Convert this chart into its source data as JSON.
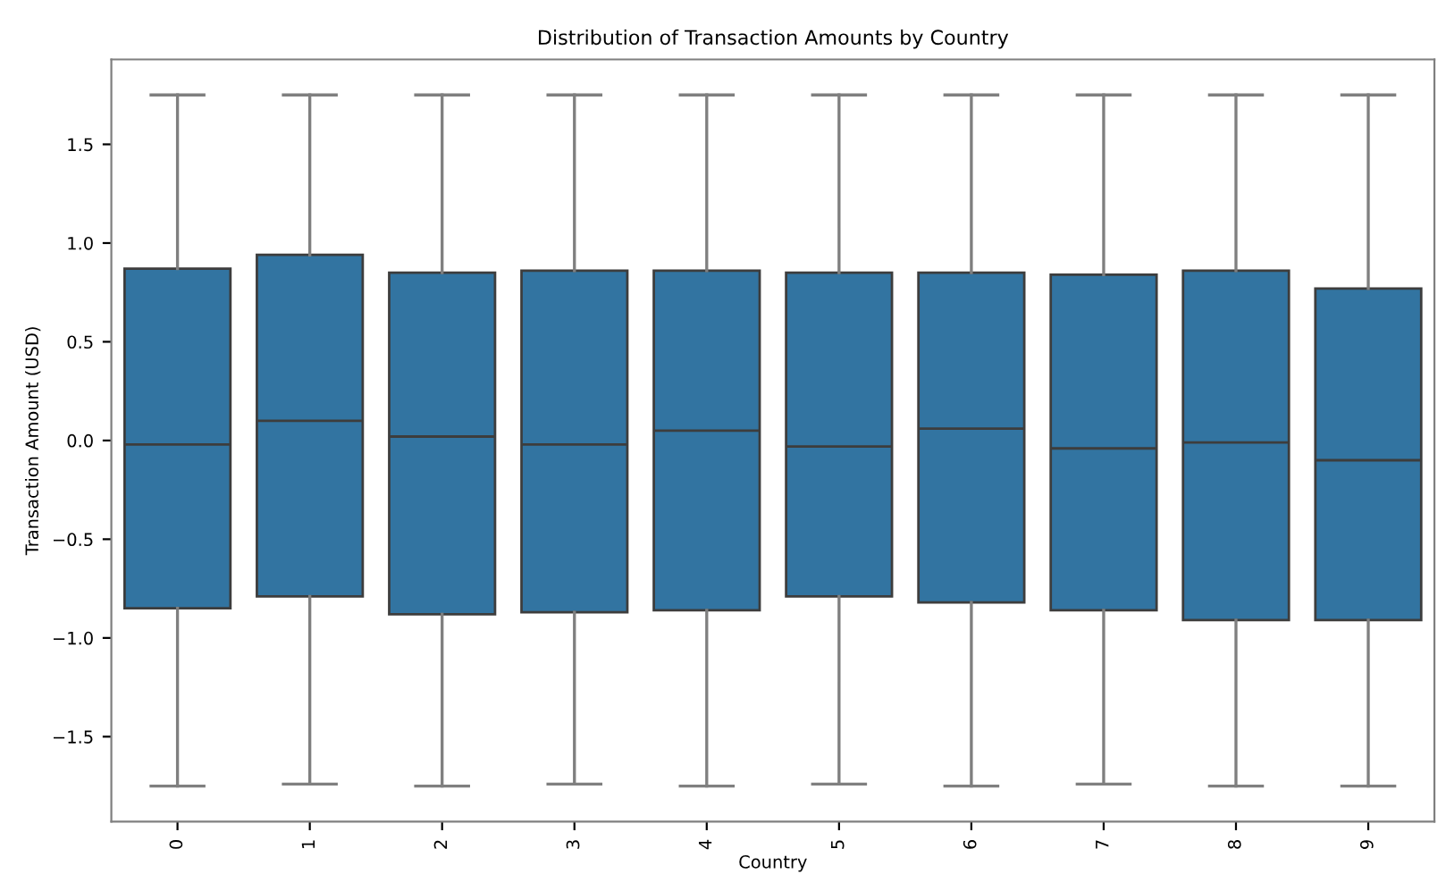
{
  "chart_data": {
    "type": "box",
    "title": "Distribution of Transaction Amounts by Country",
    "xlabel": "Country",
    "ylabel": "Transaction Amount (USD)",
    "categories": [
      "0",
      "1",
      "2",
      "3",
      "4",
      "5",
      "6",
      "7",
      "8",
      "9"
    ],
    "series": [
      {
        "color": "#3274a1",
        "boxes": [
          {
            "low": -1.75,
            "q1": -0.85,
            "median": -0.02,
            "q3": 0.87,
            "high": 1.75
          },
          {
            "low": -1.74,
            "q1": -0.79,
            "median": 0.1,
            "q3": 0.94,
            "high": 1.75
          },
          {
            "low": -1.75,
            "q1": -0.88,
            "median": 0.02,
            "q3": 0.85,
            "high": 1.75
          },
          {
            "low": -1.74,
            "q1": -0.87,
            "median": -0.02,
            "q3": 0.86,
            "high": 1.75
          },
          {
            "low": -1.75,
            "q1": -0.86,
            "median": 0.05,
            "q3": 0.86,
            "high": 1.75
          },
          {
            "low": -1.74,
            "q1": -0.79,
            "median": -0.03,
            "q3": 0.85,
            "high": 1.75
          },
          {
            "low": -1.75,
            "q1": -0.82,
            "median": 0.06,
            "q3": 0.85,
            "high": 1.75
          },
          {
            "low": -1.74,
            "q1": -0.86,
            "median": -0.04,
            "q3": 0.84,
            "high": 1.75
          },
          {
            "low": -1.75,
            "q1": -0.91,
            "median": -0.01,
            "q3": 0.86,
            "high": 1.75
          },
          {
            "low": -1.75,
            "q1": -0.91,
            "median": -0.1,
            "q3": 0.77,
            "high": 1.75
          }
        ]
      }
    ],
    "ylim": [
      -1.93,
      1.93
    ],
    "yticks": [
      {
        "value": -1.5,
        "label": "−1.5"
      },
      {
        "value": -1.0,
        "label": "−1.0"
      },
      {
        "value": -0.5,
        "label": "−0.5"
      },
      {
        "value": 0.0,
        "label": "0.0"
      },
      {
        "value": 0.5,
        "label": "0.5"
      },
      {
        "value": 1.0,
        "label": "1.0"
      },
      {
        "value": 1.5,
        "label": "1.5"
      }
    ],
    "grid": false
  }
}
